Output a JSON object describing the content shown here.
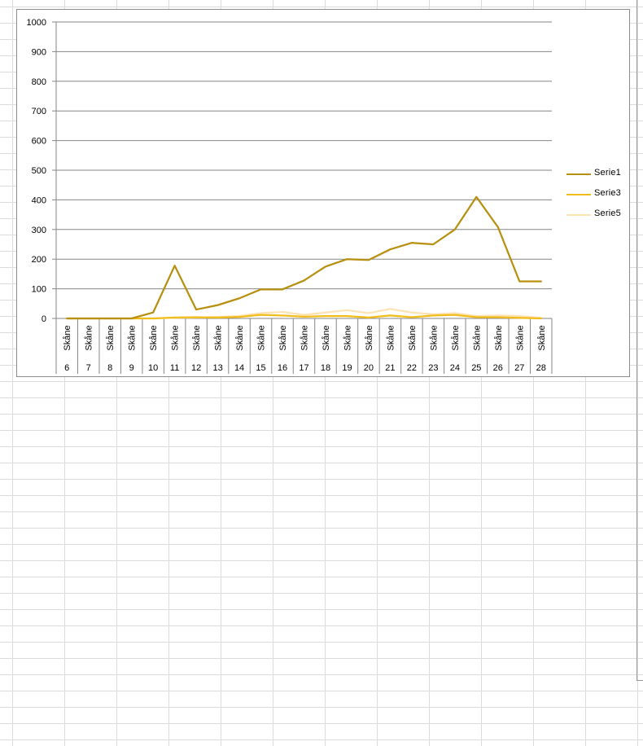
{
  "chart_data": {
    "type": "line",
    "title": "",
    "xlabel": "",
    "ylabel": "",
    "ylim": [
      0,
      1000
    ],
    "yticks": [
      0,
      100,
      200,
      300,
      400,
      500,
      600,
      700,
      800,
      900,
      1000
    ],
    "grid": true,
    "legend_position": "right",
    "categories": [
      {
        "region": "Skåne",
        "week": "6"
      },
      {
        "region": "Skåne",
        "week": "7"
      },
      {
        "region": "Skåne",
        "week": "8"
      },
      {
        "region": "Skåne",
        "week": "9"
      },
      {
        "region": "Skåne",
        "week": "10"
      },
      {
        "region": "Skåne",
        "week": "11"
      },
      {
        "region": "Skåne",
        "week": "12"
      },
      {
        "region": "Skåne",
        "week": "13"
      },
      {
        "region": "Skåne",
        "week": "14"
      },
      {
        "region": "Skåne",
        "week": "15"
      },
      {
        "region": "Skåne",
        "week": "16"
      },
      {
        "region": "Skåne",
        "week": "17"
      },
      {
        "region": "Skåne",
        "week": "18"
      },
      {
        "region": "Skåne",
        "week": "19"
      },
      {
        "region": "Skåne",
        "week": "20"
      },
      {
        "region": "Skåne",
        "week": "21"
      },
      {
        "region": "Skåne",
        "week": "22"
      },
      {
        "region": "Skåne",
        "week": "23"
      },
      {
        "region": "Skåne",
        "week": "24"
      },
      {
        "region": "Skåne",
        "week": "25"
      },
      {
        "region": "Skåne",
        "week": "26"
      },
      {
        "region": "Skåne",
        "week": "27"
      },
      {
        "region": "Skåne",
        "week": "28"
      }
    ],
    "series": [
      {
        "name": "Serie1",
        "color": "#b8900f",
        "values": [
          0,
          0,
          0,
          0,
          20,
          178,
          30,
          45,
          68,
          98,
          98,
          128,
          175,
          200,
          197,
          233,
          255,
          250,
          300,
          410,
          308,
          125,
          125
        ]
      },
      {
        "name": "Serie3",
        "color": "#f2bd1a",
        "values": [
          0,
          0,
          0,
          0,
          0,
          3,
          4,
          3,
          5,
          12,
          10,
          6,
          8,
          8,
          3,
          10,
          4,
          10,
          12,
          4,
          4,
          2,
          0
        ]
      },
      {
        "name": "Serie5",
        "color": "#fde3b4",
        "values": [
          0,
          0,
          0,
          0,
          0,
          2,
          3,
          5,
          8,
          18,
          22,
          12,
          20,
          28,
          18,
          32,
          20,
          14,
          18,
          8,
          10,
          8,
          2
        ]
      }
    ]
  }
}
